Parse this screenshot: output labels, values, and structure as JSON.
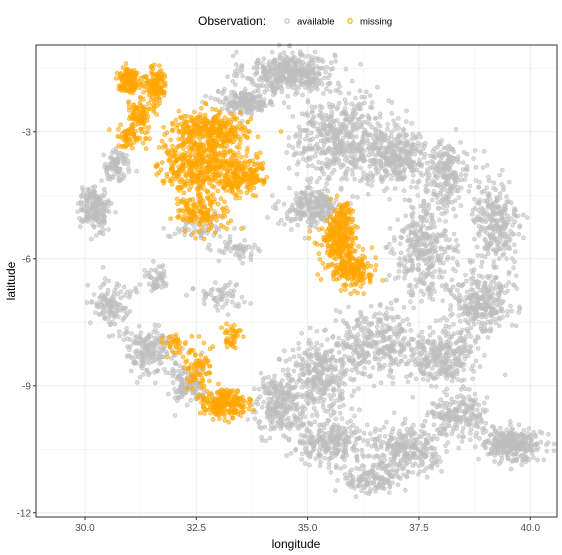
{
  "chart_data": {
    "type": "scatter",
    "title": "",
    "xlabel": "longitude",
    "ylabel": "latitude",
    "xlim": [
      28.9,
      40.6
    ],
    "ylim": [
      -12.1,
      -0.95
    ],
    "x_ticks": [
      "30.0",
      "32.5",
      "35.0",
      "37.5",
      "40.0"
    ],
    "x_tick_values": [
      30.0,
      32.5,
      35.0,
      37.5,
      40.0
    ],
    "y_ticks": [
      "-3",
      "-6",
      "-9",
      "-12"
    ],
    "y_tick_values": [
      -3,
      -6,
      -9,
      -12
    ],
    "grid": true,
    "legend": {
      "title": "Observation:",
      "position": "top",
      "entries": [
        "available",
        "missing"
      ]
    },
    "series": [
      {
        "name": "available",
        "color": "#bebebe",
        "clusters": [
          {
            "x": 34.6,
            "y": -1.6,
            "spread": [
              0.9,
              0.45
            ],
            "n": 420
          },
          {
            "x": 33.6,
            "y": -2.3,
            "spread": [
              0.6,
              0.25
            ],
            "n": 180
          },
          {
            "x": 35.8,
            "y": -3.2,
            "spread": [
              1.0,
              0.9
            ],
            "n": 520
          },
          {
            "x": 37.0,
            "y": -3.6,
            "spread": [
              0.6,
              0.6
            ],
            "n": 280
          },
          {
            "x": 38.1,
            "y": -4.0,
            "spread": [
              0.5,
              0.7
            ],
            "n": 220
          },
          {
            "x": 39.2,
            "y": -5.2,
            "spread": [
              0.5,
              1.0
            ],
            "n": 260
          },
          {
            "x": 35.1,
            "y": -4.8,
            "spread": [
              0.6,
              0.4
            ],
            "n": 240
          },
          {
            "x": 37.6,
            "y": -5.8,
            "spread": [
              0.6,
              1.0
            ],
            "n": 320
          },
          {
            "x": 38.9,
            "y": -7.0,
            "spread": [
              0.6,
              0.7
            ],
            "n": 300
          },
          {
            "x": 38.0,
            "y": -8.3,
            "spread": [
              0.7,
              0.6
            ],
            "n": 300
          },
          {
            "x": 36.5,
            "y": -8.0,
            "spread": [
              0.8,
              0.7
            ],
            "n": 320
          },
          {
            "x": 35.3,
            "y": -8.7,
            "spread": [
              0.6,
              0.7
            ],
            "n": 300
          },
          {
            "x": 34.4,
            "y": -9.4,
            "spread": [
              0.5,
              0.6
            ],
            "n": 260
          },
          {
            "x": 35.5,
            "y": -10.3,
            "spread": [
              0.8,
              0.5
            ],
            "n": 280
          },
          {
            "x": 37.2,
            "y": -10.5,
            "spread": [
              0.7,
              0.5
            ],
            "n": 260
          },
          {
            "x": 39.6,
            "y": -10.4,
            "spread": [
              0.6,
              0.35
            ],
            "n": 300
          },
          {
            "x": 38.4,
            "y": -9.7,
            "spread": [
              0.6,
              0.5
            ],
            "n": 200
          },
          {
            "x": 36.5,
            "y": -11.2,
            "spread": [
              0.6,
              0.3
            ],
            "n": 140
          },
          {
            "x": 30.2,
            "y": -4.8,
            "spread": [
              0.3,
              0.45
            ],
            "n": 180
          },
          {
            "x": 30.7,
            "y": -3.8,
            "spread": [
              0.3,
              0.35
            ],
            "n": 90
          },
          {
            "x": 30.6,
            "y": -7.1,
            "spread": [
              0.4,
              0.6
            ],
            "n": 120
          },
          {
            "x": 31.4,
            "y": -8.2,
            "spread": [
              0.5,
              0.5
            ],
            "n": 180
          },
          {
            "x": 32.3,
            "y": -9.0,
            "spread": [
              0.4,
              0.4
            ],
            "n": 120
          },
          {
            "x": 31.6,
            "y": -6.5,
            "spread": [
              0.25,
              0.25
            ],
            "n": 50
          },
          {
            "x": 33.0,
            "y": -6.9,
            "spread": [
              0.5,
              0.3
            ],
            "n": 60
          },
          {
            "x": 33.4,
            "y": -5.8,
            "spread": [
              0.4,
              0.3
            ],
            "n": 50
          },
          {
            "x": 32.6,
            "y": -5.2,
            "spread": [
              0.6,
              0.35
            ],
            "n": 60
          }
        ]
      },
      {
        "name": "missing",
        "color": "#ffa500",
        "clusters": [
          {
            "x": 31.0,
            "y": -1.8,
            "spread": [
              0.25,
              0.25
            ],
            "n": 140
          },
          {
            "x": 31.6,
            "y": -1.9,
            "spread": [
              0.2,
              0.35
            ],
            "n": 120
          },
          {
            "x": 31.2,
            "y": -2.6,
            "spread": [
              0.3,
              0.3
            ],
            "n": 80
          },
          {
            "x": 32.8,
            "y": -3.0,
            "spread": [
              0.8,
              0.4
            ],
            "n": 340
          },
          {
            "x": 32.5,
            "y": -3.8,
            "spread": [
              0.8,
              0.5
            ],
            "n": 360
          },
          {
            "x": 33.5,
            "y": -4.0,
            "spread": [
              0.5,
              0.4
            ],
            "n": 200
          },
          {
            "x": 32.6,
            "y": -4.9,
            "spread": [
              0.5,
              0.4
            ],
            "n": 160
          },
          {
            "x": 31.0,
            "y": -3.1,
            "spread": [
              0.3,
              0.3
            ],
            "n": 70
          },
          {
            "x": 35.7,
            "y": -5.6,
            "spread": [
              0.4,
              0.5
            ],
            "n": 240
          },
          {
            "x": 36.0,
            "y": -6.3,
            "spread": [
              0.4,
              0.4
            ],
            "n": 180
          },
          {
            "x": 35.8,
            "y": -4.9,
            "spread": [
              0.2,
              0.3
            ],
            "n": 60
          },
          {
            "x": 32.5,
            "y": -8.6,
            "spread": [
              0.3,
              0.5
            ],
            "n": 80
          },
          {
            "x": 33.1,
            "y": -9.4,
            "spread": [
              0.5,
              0.3
            ],
            "n": 220
          },
          {
            "x": 33.3,
            "y": -7.8,
            "spread": [
              0.2,
              0.3
            ],
            "n": 40
          },
          {
            "x": 32.0,
            "y": -8.0,
            "spread": [
              0.2,
              0.2
            ],
            "n": 30
          }
        ]
      }
    ]
  }
}
